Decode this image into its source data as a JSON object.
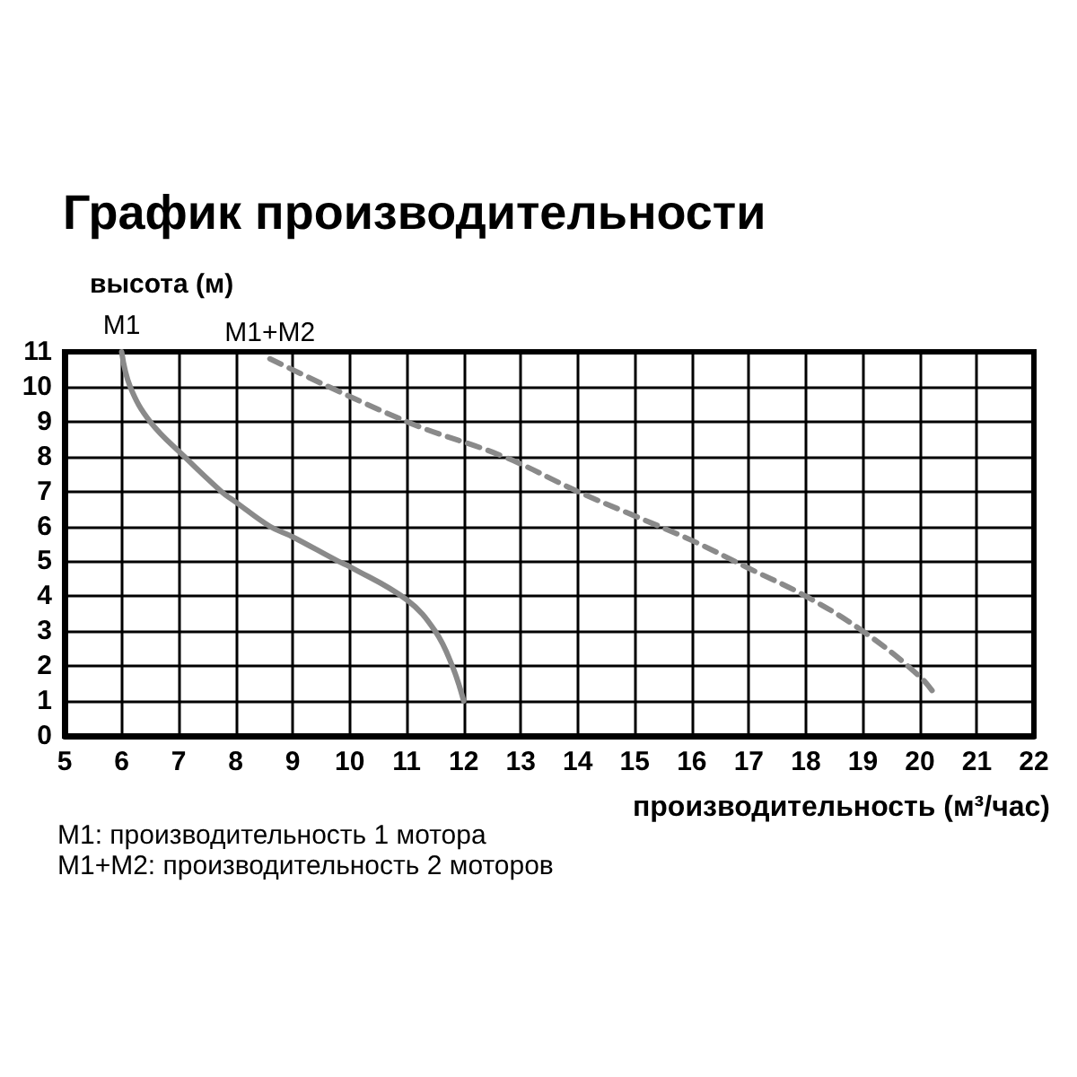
{
  "chart_data": {
    "type": "line",
    "title": "График производительности",
    "xlabel": "производительность (м³/час)",
    "ylabel": "высота (м)",
    "series": [
      {
        "name": "M1",
        "color": "#8a8a8a",
        "line_style": "solid",
        "x": [
          6,
          6.15,
          6.5,
          7.1,
          7.75,
          8,
          8.6,
          9,
          9.8,
          10,
          11,
          11.5,
          11.8,
          12
        ],
        "values": [
          11,
          10,
          9,
          8,
          7,
          6.7,
          6,
          5.7,
          5,
          4.85,
          3.9,
          3,
          2,
          1
        ]
      },
      {
        "name": "M1+M2",
        "color": "#8a8a8a",
        "line_style": "dashed",
        "x": [
          8.6,
          11,
          12.7,
          14,
          15,
          16,
          17,
          18,
          19,
          20,
          20.3
        ],
        "values": [
          10.8,
          9,
          8,
          7,
          6.3,
          5.6,
          4.8,
          4,
          3,
          1.7,
          1.1
        ]
      }
    ],
    "xlim": [
      5,
      22
    ],
    "xticks": [
      5,
      6,
      7,
      8,
      9,
      10,
      11,
      12,
      13,
      14,
      15,
      16,
      17,
      18,
      19,
      20,
      21,
      22
    ],
    "ylim": [
      0,
      11
    ],
    "yticks": [
      0,
      1,
      2,
      3,
      4,
      5,
      6,
      7,
      8,
      9,
      10,
      11
    ],
    "grid": true,
    "legend": false,
    "marker": "none",
    "annotations": [
      "M1: производительность 1 мотора",
      "M1+M2: производительность 2 моторов"
    ]
  }
}
